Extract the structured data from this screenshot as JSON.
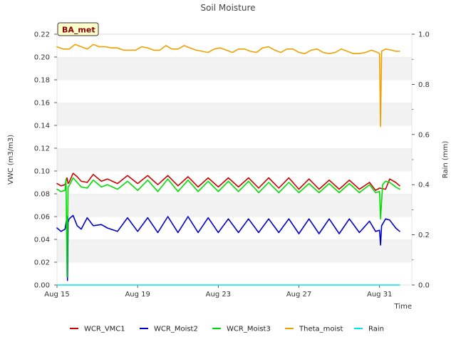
{
  "chart_data": {
    "type": "line",
    "title": "Soil Moisture",
    "badge": "BA_met",
    "xlabel": "Time",
    "ylabel": "VWC (m3/m3)",
    "y2label": "Rain (mm)",
    "x_ticks": [
      {
        "day": 0,
        "label": "Aug 15"
      },
      {
        "day": 4,
        "label": "Aug 19"
      },
      {
        "day": 8,
        "label": "Aug 23"
      },
      {
        "day": 12,
        "label": "Aug 27"
      },
      {
        "day": 16,
        "label": "Aug 31"
      }
    ],
    "xlim": [
      0,
      17.6
    ],
    "ylim": [
      0.0,
      0.22
    ],
    "y2lim": [
      0.0,
      1.0
    ],
    "y_ticks": [
      "0.00",
      "0.02",
      "0.04",
      "0.06",
      "0.08",
      "0.10",
      "0.12",
      "0.14",
      "0.16",
      "0.18",
      "0.20",
      "0.22"
    ],
    "y2_ticks": [
      "0.0",
      "0.2",
      "0.4",
      "0.6",
      "0.8",
      "1.0"
    ],
    "grid": "horizontal alternating bands",
    "legend_position": "bottom",
    "series": [
      {
        "name": "WCR_VMC1",
        "color": "#cc0000",
        "axis": "left",
        "x": [
          0.0,
          0.2,
          0.4,
          0.5,
          0.55,
          0.6,
          0.8,
          1.0,
          1.2,
          1.5,
          1.8,
          2.2,
          2.5,
          3.0,
          3.5,
          4.0,
          4.5,
          5.0,
          5.5,
          6.0,
          6.5,
          7.0,
          7.5,
          8.0,
          8.5,
          9.0,
          9.5,
          10.0,
          10.5,
          11.0,
          11.5,
          12.0,
          12.5,
          13.0,
          13.5,
          14.0,
          14.5,
          15.0,
          15.5,
          15.8,
          16.0,
          16.3,
          16.5,
          16.8,
          17.0
        ],
        "values": [
          0.089,
          0.087,
          0.088,
          0.094,
          0.089,
          0.09,
          0.098,
          0.095,
          0.091,
          0.09,
          0.097,
          0.091,
          0.093,
          0.089,
          0.096,
          0.089,
          0.096,
          0.088,
          0.096,
          0.087,
          0.095,
          0.086,
          0.094,
          0.086,
          0.094,
          0.086,
          0.094,
          0.085,
          0.094,
          0.085,
          0.094,
          0.084,
          0.093,
          0.084,
          0.092,
          0.084,
          0.092,
          0.084,
          0.09,
          0.083,
          0.085,
          0.084,
          0.093,
          0.09,
          0.087
        ]
      },
      {
        "name": "WCR_Moist2",
        "color": "#0000cc",
        "axis": "left",
        "x": [
          0.0,
          0.2,
          0.4,
          0.5,
          0.52,
          0.55,
          0.6,
          0.8,
          1.0,
          1.2,
          1.5,
          1.8,
          2.2,
          2.5,
          3.0,
          3.5,
          4.0,
          4.5,
          5.0,
          5.5,
          6.0,
          6.5,
          7.0,
          7.5,
          8.0,
          8.5,
          9.0,
          9.5,
          10.0,
          10.5,
          11.0,
          11.5,
          12.0,
          12.5,
          13.0,
          13.5,
          14.0,
          14.5,
          15.0,
          15.5,
          15.8,
          16.0,
          16.05,
          16.1,
          16.3,
          16.5,
          16.8,
          17.0
        ],
        "values": [
          0.05,
          0.047,
          0.049,
          0.06,
          0.004,
          0.055,
          0.058,
          0.061,
          0.052,
          0.049,
          0.059,
          0.052,
          0.053,
          0.05,
          0.047,
          0.059,
          0.047,
          0.059,
          0.046,
          0.06,
          0.046,
          0.06,
          0.046,
          0.059,
          0.046,
          0.058,
          0.046,
          0.058,
          0.046,
          0.058,
          0.046,
          0.058,
          0.045,
          0.058,
          0.045,
          0.058,
          0.045,
          0.058,
          0.046,
          0.056,
          0.047,
          0.048,
          0.035,
          0.052,
          0.058,
          0.057,
          0.05,
          0.047
        ]
      },
      {
        "name": "WCR_Moist3",
        "color": "#00dd00",
        "axis": "left",
        "x": [
          0.0,
          0.2,
          0.4,
          0.45,
          0.5,
          0.55,
          0.6,
          0.8,
          1.0,
          1.2,
          1.5,
          1.8,
          2.2,
          2.5,
          3.0,
          3.5,
          4.0,
          4.5,
          5.0,
          5.5,
          6.0,
          6.5,
          7.0,
          7.5,
          8.0,
          8.5,
          9.0,
          9.5,
          10.0,
          10.5,
          11.0,
          11.5,
          12.0,
          12.5,
          13.0,
          13.5,
          14.0,
          14.5,
          15.0,
          15.5,
          15.8,
          16.0,
          16.05,
          16.15,
          16.3,
          16.5,
          16.8,
          17.0
        ],
        "values": [
          0.084,
          0.082,
          0.083,
          0.093,
          0.007,
          0.086,
          0.087,
          0.094,
          0.09,
          0.086,
          0.085,
          0.092,
          0.086,
          0.088,
          0.084,
          0.091,
          0.083,
          0.092,
          0.082,
          0.093,
          0.082,
          0.092,
          0.082,
          0.091,
          0.082,
          0.091,
          0.082,
          0.091,
          0.081,
          0.09,
          0.081,
          0.09,
          0.081,
          0.089,
          0.081,
          0.089,
          0.081,
          0.089,
          0.081,
          0.088,
          0.081,
          0.082,
          0.058,
          0.088,
          0.091,
          0.09,
          0.086,
          0.084
        ]
      },
      {
        "name": "Theta_moist",
        "color": "#f0a000",
        "axis": "left",
        "x": [
          0.0,
          0.3,
          0.6,
          0.9,
          1.2,
          1.5,
          1.8,
          2.1,
          2.4,
          2.7,
          3.0,
          3.3,
          3.6,
          3.9,
          4.2,
          4.5,
          4.8,
          5.1,
          5.4,
          5.7,
          6.0,
          6.3,
          6.6,
          6.9,
          7.2,
          7.5,
          7.8,
          8.1,
          8.4,
          8.7,
          9.0,
          9.3,
          9.6,
          9.9,
          10.2,
          10.5,
          10.8,
          11.1,
          11.4,
          11.7,
          12.0,
          12.3,
          12.6,
          12.9,
          13.2,
          13.5,
          13.8,
          14.1,
          14.4,
          14.7,
          15.0,
          15.3,
          15.6,
          15.9,
          16.0,
          16.05,
          16.1,
          16.3,
          16.6,
          16.8,
          17.0
        ],
        "values": [
          0.209,
          0.207,
          0.207,
          0.211,
          0.209,
          0.207,
          0.211,
          0.209,
          0.209,
          0.208,
          0.208,
          0.206,
          0.206,
          0.206,
          0.209,
          0.208,
          0.206,
          0.206,
          0.21,
          0.207,
          0.207,
          0.21,
          0.208,
          0.206,
          0.205,
          0.204,
          0.207,
          0.208,
          0.206,
          0.204,
          0.207,
          0.207,
          0.205,
          0.204,
          0.208,
          0.209,
          0.206,
          0.204,
          0.207,
          0.207,
          0.204,
          0.203,
          0.206,
          0.207,
          0.204,
          0.203,
          0.204,
          0.207,
          0.205,
          0.203,
          0.203,
          0.204,
          0.206,
          0.204,
          0.203,
          0.139,
          0.205,
          0.207,
          0.206,
          0.205,
          0.205
        ]
      },
      {
        "name": "Rain",
        "color": "#00e5ee",
        "axis": "right",
        "x": [
          0.0,
          17.0
        ],
        "values": [
          0.0,
          0.0
        ]
      }
    ]
  }
}
